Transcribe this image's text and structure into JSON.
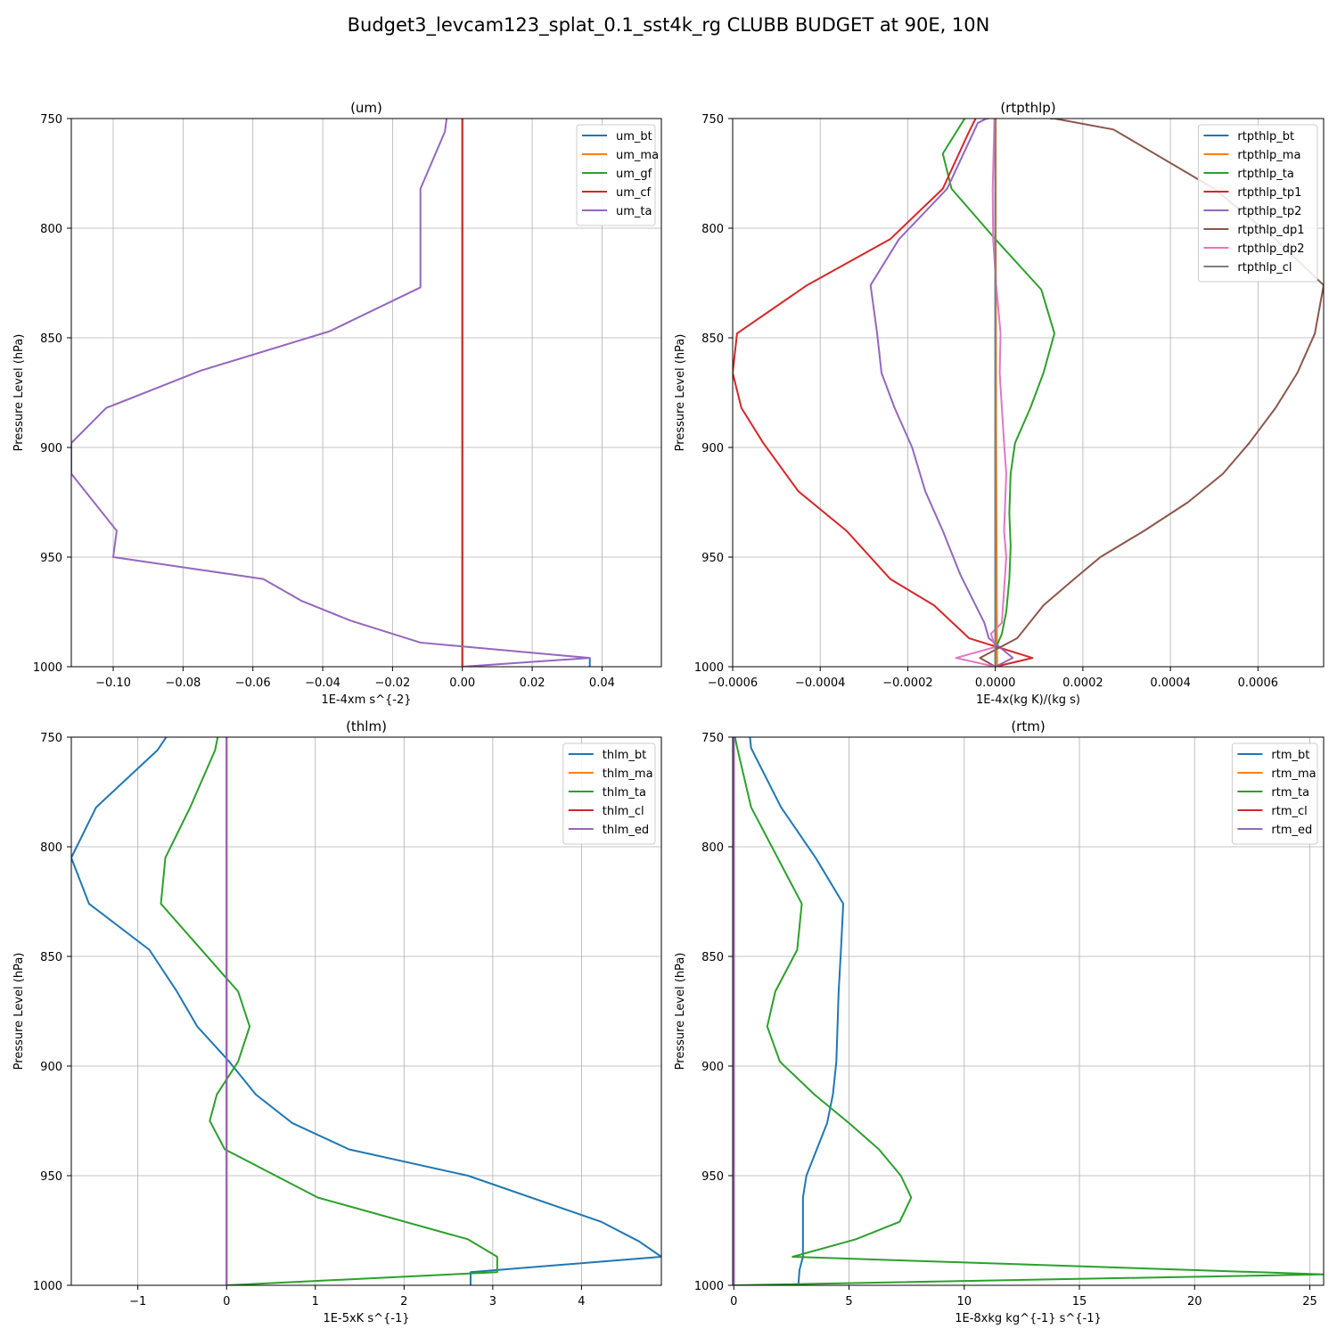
{
  "figure_title": "Budget3_levcam123_splat_0.1_sst4k_rg CLUBB BUDGET at 90E, 10N",
  "colors": {
    "blue": "#1f77b4",
    "orange": "#ff7f0e",
    "green": "#2ca02c",
    "red": "#d62728",
    "purple": "#9467bd",
    "brown": "#8c564b",
    "pink": "#e377c2",
    "gray": "#7f7f7f"
  },
  "chart_data": [
    {
      "type": "line",
      "title": "(um)",
      "xlabel": "1E-4xm s^{-2}",
      "ylabel": "Pressure Level (hPa)",
      "xlim": [
        -0.112,
        0.057
      ],
      "ylim": [
        1000,
        750
      ],
      "xticks": [
        -0.1,
        -0.08,
        -0.06,
        -0.04,
        -0.02,
        0.0,
        0.02,
        0.04
      ],
      "xtick_labels": [
        "−0.10",
        "−0.08",
        "−0.06",
        "−0.04",
        "−0.02",
        "0.00",
        "0.02",
        "0.04"
      ],
      "yticks": [
        750,
        800,
        850,
        900,
        950,
        1000
      ],
      "ytick_labels": [
        "750",
        "800",
        "850",
        "900",
        "950",
        "1000"
      ],
      "grid": true,
      "legend": "top-right",
      "series": [
        {
          "name": "um_bt",
          "color": "blue",
          "x": [
            0.0365,
            0.0365
          ],
          "y": [
            1000,
            996
          ]
        },
        {
          "name": "um_ma",
          "color": "orange",
          "x": [
            0,
            0
          ],
          "y": [
            1000,
            750
          ]
        },
        {
          "name": "um_gf",
          "color": "green",
          "x": [
            0,
            0
          ],
          "y": [
            1000,
            750
          ]
        },
        {
          "name": "um_cf",
          "color": "red",
          "x": [
            0,
            0
          ],
          "y": [
            1000,
            750
          ]
        },
        {
          "name": "um_ta",
          "color": "purple",
          "x": [
            0.0,
            0.0365,
            -0.012,
            -0.032,
            -0.046,
            -0.057,
            -0.1,
            -0.099,
            -0.112,
            -0.112,
            -0.102,
            -0.075,
            -0.038,
            -0.012,
            -0.012,
            -0.005,
            -0.0045
          ],
          "y": [
            1000,
            996,
            989,
            979,
            970,
            960,
            950,
            938,
            912,
            898,
            882,
            865,
            847,
            827,
            782,
            756,
            750
          ]
        }
      ]
    },
    {
      "type": "line",
      "title": "(rtpthlp)",
      "xlabel": "1E-4x(kg K)/(kg s)",
      "ylabel": "Pressure Level (hPa)",
      "xlim": [
        -0.0006,
        0.00075
      ],
      "ylim": [
        1000,
        750
      ],
      "xticks": [
        -0.0006,
        -0.0004,
        -0.0002,
        0.0,
        0.0002,
        0.0004,
        0.0006
      ],
      "xtick_labels": [
        "−0.0006",
        "−0.0004",
        "−0.0002",
        "0.0000",
        "0.0002",
        "0.0004",
        "0.0006"
      ],
      "yticks": [
        750,
        800,
        850,
        900,
        950,
        1000
      ],
      "ytick_labels": [
        "750",
        "800",
        "850",
        "900",
        "950",
        "1000"
      ],
      "grid": true,
      "legend": "top-right",
      "series": [
        {
          "name": "rtpthlp_bt",
          "color": "blue",
          "x": [
            0,
            0
          ],
          "y": [
            1000,
            750
          ]
        },
        {
          "name": "rtpthlp_ma",
          "color": "orange",
          "x": [
            4e-06,
            2e-06,
            1e-06,
            1e-06
          ],
          "y": [
            1000,
            900,
            800,
            750
          ]
        },
        {
          "name": "rtpthlp_ta",
          "color": "green",
          "x": [
            0.0,
            0.0,
            1.5e-05,
            2.5e-05,
            3.2e-05,
            3.5e-05,
            3.2e-05,
            3.5e-05,
            4.5e-05,
            8e-05,
            0.00011,
            0.000135,
            0.000105,
            0.0,
            -0.0001,
            -0.00012,
            -7e-05
          ],
          "y": [
            1000,
            992,
            985,
            975,
            960,
            945,
            930,
            912,
            898,
            882,
            866,
            848,
            828,
            805,
            782,
            766,
            750
          ]
        },
        {
          "name": "rtpthlp_tp1",
          "color": "red",
          "x": [
            0.0,
            8.5e-05,
            -6e-05,
            -0.00014,
            -0.00024,
            -0.00034,
            -0.00045,
            -0.00053,
            -0.00058,
            -0.0006,
            -0.00059,
            -0.00043,
            -0.00024,
            -0.00012,
            -6e-05,
            -4.5e-05
          ],
          "y": [
            1000,
            996,
            987,
            972,
            960,
            938,
            920,
            898,
            882,
            866,
            848,
            826,
            805,
            782,
            756,
            750
          ]
        },
        {
          "name": "rtpthlp_tp2",
          "color": "purple",
          "x": [
            0.0,
            4e-05,
            -1.5e-05,
            -2.5e-05,
            -5e-05,
            -8e-05,
            -0.00012,
            -0.00016,
            -0.00019,
            -0.00023,
            -0.00026,
            -0.00027,
            -0.000285,
            -0.00022,
            -0.00011,
            -4e-05,
            -2e-05,
            -1.5e-05
          ],
          "y": [
            1000,
            996,
            987,
            980,
            970,
            958,
            938,
            920,
            900,
            882,
            866,
            848,
            826,
            805,
            782,
            752,
            750,
            750
          ]
        },
        {
          "name": "rtpthlp_dp1",
          "color": "brown",
          "x": [
            0.0,
            -3.5e-05,
            5e-05,
            0.00011,
            0.00018,
            0.00024,
            0.00034,
            0.00044,
            0.00052,
            0.00058,
            0.00064,
            0.00069,
            0.00073,
            0.00075,
            0.00064,
            0.0005,
            0.00027,
            0.000135,
            0.000125
          ],
          "y": [
            1000,
            996,
            987,
            972,
            960,
            950,
            938,
            925,
            912,
            898,
            882,
            866,
            848,
            826,
            805,
            782,
            755,
            750,
            750
          ]
        },
        {
          "name": "rtpthlp_dp2",
          "color": "pink",
          "x": [
            0.0,
            -9e-05,
            0.0,
            -1e-05,
            1.5e-05,
            2.5e-05,
            2e-05,
            2.5e-05,
            2e-05,
            1.5e-05,
            1e-05,
            1.2e-05,
            2e-06,
            -5e-06,
            -6e-06,
            -4e-06,
            -2e-06
          ],
          "y": [
            1000,
            996,
            991,
            985,
            980,
            950,
            938,
            912,
            898,
            882,
            866,
            848,
            826,
            805,
            782,
            766,
            750
          ]
        },
        {
          "name": "rtpthlp_cl",
          "color": "gray",
          "x": [
            0,
            0
          ],
          "y": [
            1000,
            750
          ]
        }
      ]
    },
    {
      "type": "line",
      "title": "(thlm)",
      "xlabel": "1E-5xK s^{-1}",
      "ylabel": "Pressure Level (hPa)",
      "xlim": [
        -1.75,
        4.9
      ],
      "ylim": [
        1000,
        750
      ],
      "xticks": [
        -1,
        0,
        1,
        2,
        3,
        4
      ],
      "xtick_labels": [
        "−1",
        "0",
        "1",
        "2",
        "3",
        "4"
      ],
      "yticks": [
        750,
        800,
        850,
        900,
        950,
        1000
      ],
      "ytick_labels": [
        "750",
        "800",
        "850",
        "900",
        "950",
        "1000"
      ],
      "grid": true,
      "legend": "top-right",
      "series": [
        {
          "name": "thlm_bt",
          "color": "blue",
          "x": [
            2.75,
            2.75,
            4.9,
            4.65,
            4.22,
            2.72,
            1.38,
            0.74,
            0.33,
            0.03,
            -0.33,
            -0.56,
            -0.87,
            -1.55,
            -1.75,
            -1.47,
            -0.78,
            -0.68
          ],
          "y": [
            1000,
            994,
            987,
            980,
            971,
            950,
            938,
            926,
            913,
            898,
            882,
            866,
            847,
            826,
            805,
            782,
            756,
            750
          ]
        },
        {
          "name": "thlm_ma",
          "color": "orange",
          "x": [
            0,
            0
          ],
          "y": [
            1000,
            750
          ]
        },
        {
          "name": "thlm_ta",
          "color": "green",
          "x": [
            0.0,
            3.05,
            3.05,
            2.72,
            1.03,
            -0.02,
            -0.19,
            -0.11,
            0.13,
            0.26,
            0.13,
            -0.74,
            -0.69,
            -0.41,
            -0.13,
            -0.1
          ],
          "y": [
            1000,
            994,
            987,
            979,
            960,
            938,
            925,
            913,
            898,
            882,
            866,
            826,
            805,
            782,
            756,
            750
          ]
        },
        {
          "name": "thlm_cl",
          "color": "red",
          "x": [
            0,
            0
          ],
          "y": [
            1000,
            750
          ]
        },
        {
          "name": "thlm_ed",
          "color": "purple",
          "x": [
            0,
            0
          ],
          "y": [
            1000,
            750
          ]
        }
      ]
    },
    {
      "type": "line",
      "title": "(rtm)",
      "xlabel": "1E-8xkg kg^{-1} s^{-1}",
      "ylabel": "Pressure Level (hPa)",
      "xlim": [
        -0.05,
        25.6
      ],
      "ylim": [
        1000,
        750
      ],
      "xticks": [
        0,
        5,
        10,
        15,
        20,
        25
      ],
      "xtick_labels": [
        "0",
        "5",
        "10",
        "15",
        "20",
        "25"
      ],
      "yticks": [
        750,
        800,
        850,
        900,
        950,
        1000
      ],
      "ytick_labels": [
        "750",
        "800",
        "850",
        "900",
        "950",
        "1000"
      ],
      "grid": true,
      "legend": "top-right",
      "series": [
        {
          "name": "rtm_bt",
          "color": "blue",
          "x": [
            2.8,
            2.85,
            3.0,
            3.0,
            3.0,
            3.15,
            3.6,
            4.05,
            4.3,
            4.45,
            4.5,
            4.55,
            4.65,
            4.75,
            3.55,
            2.05,
            0.75,
            0.7
          ],
          "y": [
            1000,
            993,
            987,
            970,
            960,
            950,
            938,
            926,
            913,
            898,
            882,
            866,
            847,
            826,
            805,
            782,
            755,
            750
          ]
        },
        {
          "name": "rtm_ma",
          "color": "orange",
          "x": [
            0,
            0
          ],
          "y": [
            1000,
            750
          ]
        },
        {
          "name": "rtm_ta",
          "color": "green",
          "x": [
            0.0,
            25.6,
            2.55,
            5.3,
            7.2,
            7.7,
            7.25,
            6.3,
            5.0,
            3.5,
            2.0,
            1.45,
            1.8,
            2.75,
            2.95,
            0.75,
            0.15,
            0.05
          ],
          "y": [
            1000,
            995,
            987,
            979,
            971,
            960,
            950,
            938,
            926,
            913,
            898,
            882,
            866,
            847,
            826,
            782,
            755,
            750
          ]
        },
        {
          "name": "rtm_cl",
          "color": "red",
          "x": [
            0,
            0
          ],
          "y": [
            1000,
            750
          ]
        },
        {
          "name": "rtm_ed",
          "color": "purple",
          "x": [
            0,
            0
          ],
          "y": [
            1000,
            750
          ]
        }
      ]
    }
  ]
}
